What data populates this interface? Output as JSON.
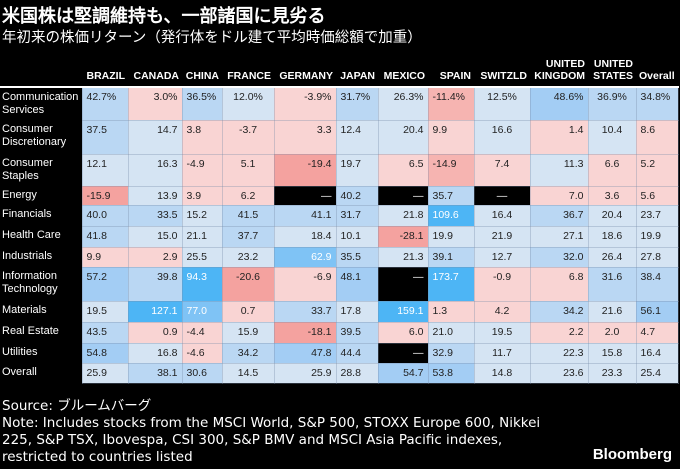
{
  "title": "米国株は堅調維持も、一部諸国に見劣る",
  "subtitle": "年初来の株価リターン（発行体をドル建て平均時価総額で加重）",
  "chart_data": {
    "type": "table",
    "columns": [
      "BRAZIL",
      "CANADA",
      "CHINA",
      "FRANCE",
      "GERMANY",
      "JAPAN",
      "MEXICO",
      "SPAIN",
      "SWITZLD",
      "UNITED KINGDOM",
      "UNITED STATES",
      "Overall"
    ],
    "rows": [
      {
        "label": "Communication Services",
        "values": [
          "42.7%",
          "3.0%",
          "36.5%",
          "12.0%",
          "-3.9%",
          "31.7%",
          "26.3%",
          "-11.4%",
          "12.5%",
          "48.6%",
          "36.9%",
          "34.8%"
        ]
      },
      {
        "label": "Consumer Discretionary",
        "values": [
          "37.5",
          "14.7",
          "3.8",
          "-3.7",
          "3.3",
          "12.4",
          "20.4",
          "9.9",
          "16.6",
          "1.4",
          "10.4",
          "8.6"
        ]
      },
      {
        "label": "Consumer Staples",
        "values": [
          "12.1",
          "16.3",
          "-4.9",
          "5.1",
          "-19.4",
          "19.7",
          "6.5",
          "-14.9",
          "7.4",
          "11.3",
          "6.6",
          "5.2"
        ]
      },
      {
        "label": "Energy",
        "values": [
          "-15.9",
          "13.9",
          "3.9",
          "6.2",
          "—",
          "40.2",
          "—",
          "35.7",
          "—",
          "7.0",
          "3.6",
          "5.6"
        ]
      },
      {
        "label": "Financials",
        "values": [
          "40.0",
          "33.5",
          "15.2",
          "41.5",
          "41.1",
          "31.7",
          "21.8",
          "109.6",
          "16.4",
          "36.7",
          "20.4",
          "23.7"
        ]
      },
      {
        "label": "Health Care",
        "values": [
          "41.8",
          "15.0",
          "21.1",
          "37.7",
          "18.4",
          "10.1",
          "-28.1",
          "19.9",
          "21.9",
          "27.1",
          "18.6",
          "19.9"
        ]
      },
      {
        "label": "Industrials",
        "values": [
          "9.9",
          "2.9",
          "25.5",
          "23.2",
          "62.9",
          "35.5",
          "21.3",
          "39.1",
          "12.7",
          "32.0",
          "26.4",
          "27.8"
        ]
      },
      {
        "label": "Information Technology",
        "values": [
          "57.2",
          "39.8",
          "94.3",
          "-20.6",
          "-6.9",
          "48.1",
          "—",
          "173.7",
          "-0.9",
          "6.8",
          "31.6",
          "38.4"
        ]
      },
      {
        "label": "Materials",
        "values": [
          "19.5",
          "127.1",
          "77.0",
          "0.7",
          "33.7",
          "17.8",
          "159.1",
          "1.3",
          "4.2",
          "34.2",
          "21.6",
          "56.1"
        ]
      },
      {
        "label": "Real Estate",
        "values": [
          "43.5",
          "0.9",
          "-4.4",
          "15.9",
          "-18.1",
          "39.5",
          "6.0",
          "21.0",
          "19.5",
          "2.2",
          "2.0",
          "4.7"
        ]
      },
      {
        "label": "Utilities",
        "values": [
          "54.8",
          "16.8",
          "-4.6",
          "34.2",
          "47.8",
          "44.4",
          "—",
          "32.9",
          "11.7",
          "22.3",
          "15.8",
          "16.4"
        ]
      },
      {
        "label": "Overall",
        "values": [
          "25.9",
          "38.1",
          "30.6",
          "14.5",
          "25.9",
          "28.8",
          "54.7",
          "53.8",
          "14.8",
          "23.6",
          "23.3",
          "25.4"
        ]
      }
    ]
  },
  "source": "Source: ブルームバーグ",
  "note": "Note: Includes stocks from the MSCI World, S&P 500, STOXX Europe 600, Nikkei 225, S&P TSX, Ibovespa, CSI 300, S&P BMV and MSCI Asia Pacific indexes, restricted to countries listed",
  "logo": "Bloomberg"
}
